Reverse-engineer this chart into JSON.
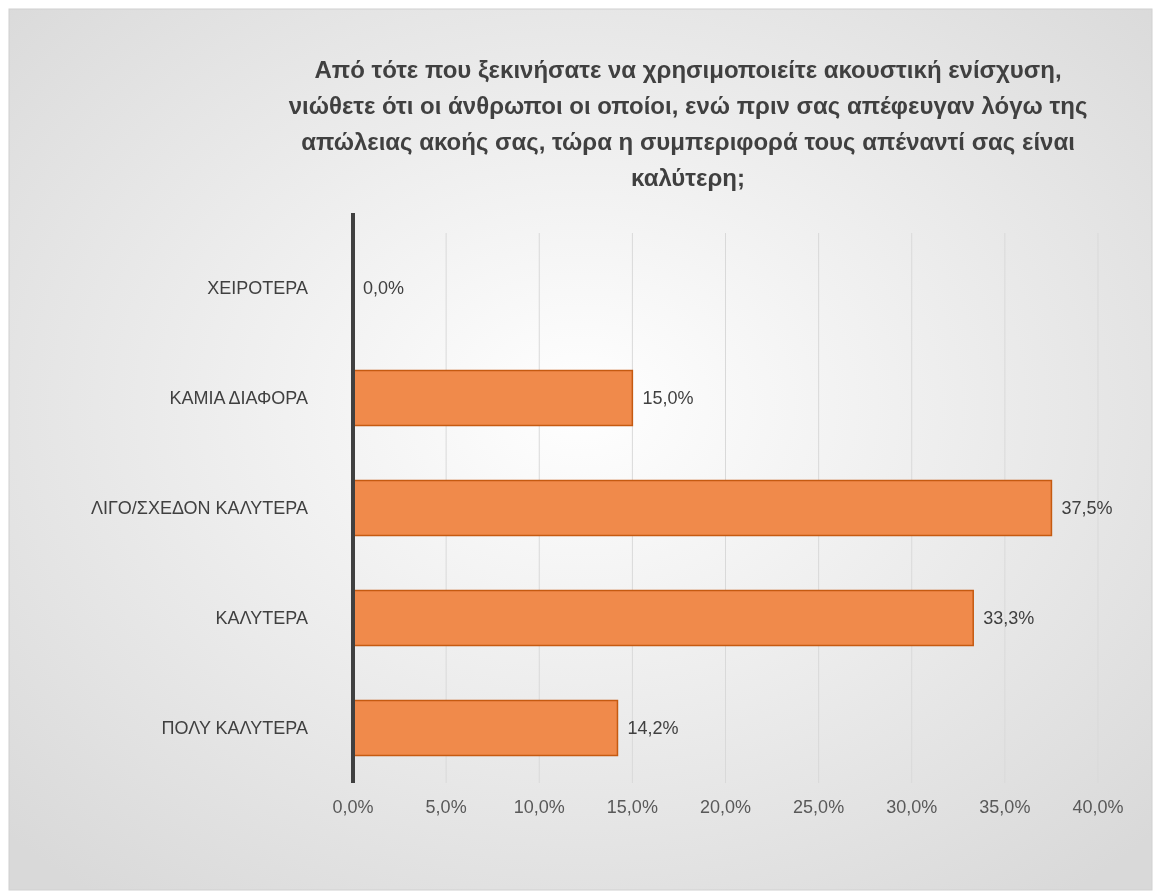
{
  "chart_data": {
    "type": "bar",
    "orientation": "horizontal",
    "title": "Από τότε που ξεκινήσατε να χρησιμοποιείτε ακουστική ενίσχυση, νιώθετε ότι οι άνθρωποι οι οποίοι, ενώ πριν σας απέφευγαν λόγω της απώλειας ακοής σας, τώρα η συμπεριφορά τους απέναντί σας είναι καλύτερη;",
    "categories": [
      "ΧΕΙΡΟΤΕΡΑ",
      "ΚΑΜΙΑ ΔΙΑΦΟΡΑ",
      "ΛΙΓΟ/ΣΧΕΔΟΝ ΚΑΛΥΤΕΡΑ",
      "ΚΑΛΥΤΕΡΑ",
      "ΠΟΛΥ ΚΑΛΥΤΕΡΑ"
    ],
    "values": [
      0,
      15,
      37.5,
      33.3,
      14.2
    ],
    "value_labels": [
      "0,0%",
      "15,0%",
      "37,5%",
      "33,3%",
      "14,2%"
    ],
    "color": "#f08a4b",
    "xlim": [
      0,
      40
    ],
    "xticks": [
      {
        "value": 0,
        "label": "0,0%"
      },
      {
        "value": 5,
        "label": "5,0%"
      },
      {
        "value": 10,
        "label": "10,0%"
      },
      {
        "value": 15,
        "label": "15,0%"
      },
      {
        "value": 20,
        "label": "20,0%"
      },
      {
        "value": 25,
        "label": "25,0%"
      },
      {
        "value": 30,
        "label": "30,0%"
      },
      {
        "value": 35,
        "label": "35,0%"
      },
      {
        "value": 40,
        "label": "40,0%"
      }
    ],
    "grid": "x"
  }
}
